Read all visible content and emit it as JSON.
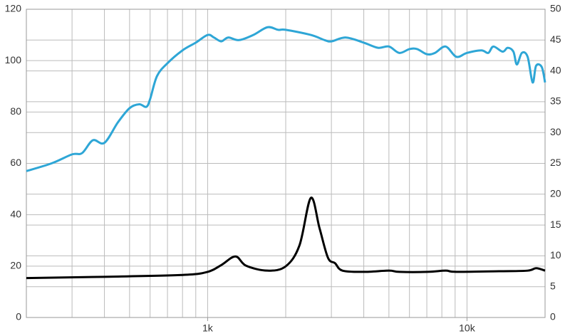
{
  "chart_data": {
    "type": "line",
    "xscale": "log",
    "grid": true,
    "xlim": [
      200,
      20000
    ],
    "xticks": [
      {
        "value": 1000,
        "label": "1k"
      },
      {
        "value": 10000,
        "label": "10k"
      }
    ],
    "xgrid": [
      200,
      300,
      400,
      500,
      600,
      700,
      800,
      900,
      1000,
      2000,
      3000,
      4000,
      5000,
      6000,
      7000,
      8000,
      9000,
      10000,
      20000
    ],
    "ylim": [
      0,
      120
    ],
    "yticks": [
      0,
      20,
      40,
      60,
      80,
      100,
      120
    ],
    "y2lim": [
      0,
      50
    ],
    "y2ticks": [
      0,
      5,
      10,
      15,
      20,
      25,
      30,
      35,
      40,
      45,
      50
    ],
    "series": [
      {
        "color": "#2ea6d6",
        "x": [
          200,
          250,
          300,
          328,
          361,
          400,
          451,
          500,
          545,
          580,
          600,
          638,
          700,
          800,
          900,
          1000,
          1058,
          1128,
          1200,
          1321,
          1500,
          1701,
          1871,
          2000,
          2500,
          2823,
          3000,
          3412,
          4000,
          4540,
          5000,
          5484,
          6000,
          6423,
          7000,
          7520,
          8270,
          9096,
          10000,
          11350,
          12080,
          12640,
          13720,
          14350,
          15100,
          15570,
          16280,
          17130,
          17910,
          18470,
          19420,
          20000
        ],
        "values": [
          57,
          60,
          63.5,
          64,
          69,
          68,
          76,
          81.5,
          83,
          82,
          85,
          94,
          99,
          104,
          107,
          110,
          109,
          107.5,
          109,
          108,
          110,
          113,
          112,
          112,
          110,
          108,
          107.5,
          109,
          107,
          105,
          105.5,
          103,
          104.5,
          104.5,
          102.5,
          103,
          105.5,
          101.5,
          103,
          104,
          103,
          105.5,
          103.5,
          105,
          103.5,
          98.5,
          103,
          101.5,
          91.5,
          98,
          97.5,
          91.5
        ]
      },
      {
        "color": "#000000",
        "axis": "y2",
        "x": [
          200,
          400,
          800,
          1000,
          1128,
          1280,
          1407,
          1701,
          2000,
          2260,
          2500,
          2700,
          2910,
          3100,
          3310,
          4000,
          5000,
          5480,
          7050,
          8270,
          9100,
          13300,
          17130,
          18470,
          20000
        ],
        "values": [
          6.4,
          6.6,
          6.9,
          7.4,
          8.5,
          9.9,
          8.4,
          7.6,
          8.3,
          11.7,
          19.4,
          14.5,
          9.7,
          8.8,
          7.6,
          7.4,
          7.6,
          7.4,
          7.4,
          7.6,
          7.4,
          7.5,
          7.6,
          8,
          7.6
        ]
      }
    ]
  }
}
